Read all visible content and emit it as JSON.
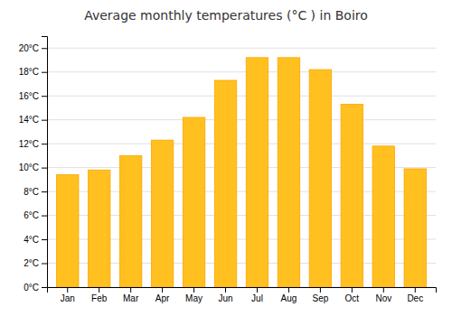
{
  "chart_data": {
    "type": "bar",
    "title": "Average monthly temperatures (°C ) in Boiro",
    "categories": [
      "Jan",
      "Feb",
      "Mar",
      "Apr",
      "May",
      "Jun",
      "Jul",
      "Aug",
      "Sep",
      "Oct",
      "Nov",
      "Dec"
    ],
    "values": [
      9.4,
      9.8,
      11.0,
      12.3,
      14.2,
      17.3,
      19.2,
      19.2,
      18.2,
      15.3,
      11.8,
      9.9
    ],
    "color": "#FFC020",
    "ylim": [
      0,
      21
    ],
    "yticks": [
      {
        "value": 0,
        "label": "0°C"
      },
      {
        "value": 2,
        "label": "2°C"
      },
      {
        "value": 4,
        "label": "4°C"
      },
      {
        "value": 6,
        "label": "6°C"
      },
      {
        "value": 8,
        "label": "8°C"
      },
      {
        "value": 10,
        "label": "10°C"
      },
      {
        "value": 12,
        "label": "12°C"
      },
      {
        "value": 14,
        "label": "14°C"
      },
      {
        "value": 16,
        "label": "16°C"
      },
      {
        "value": 18,
        "label": "18°C"
      },
      {
        "value": 20,
        "label": "20°C"
      }
    ],
    "grid": true
  }
}
